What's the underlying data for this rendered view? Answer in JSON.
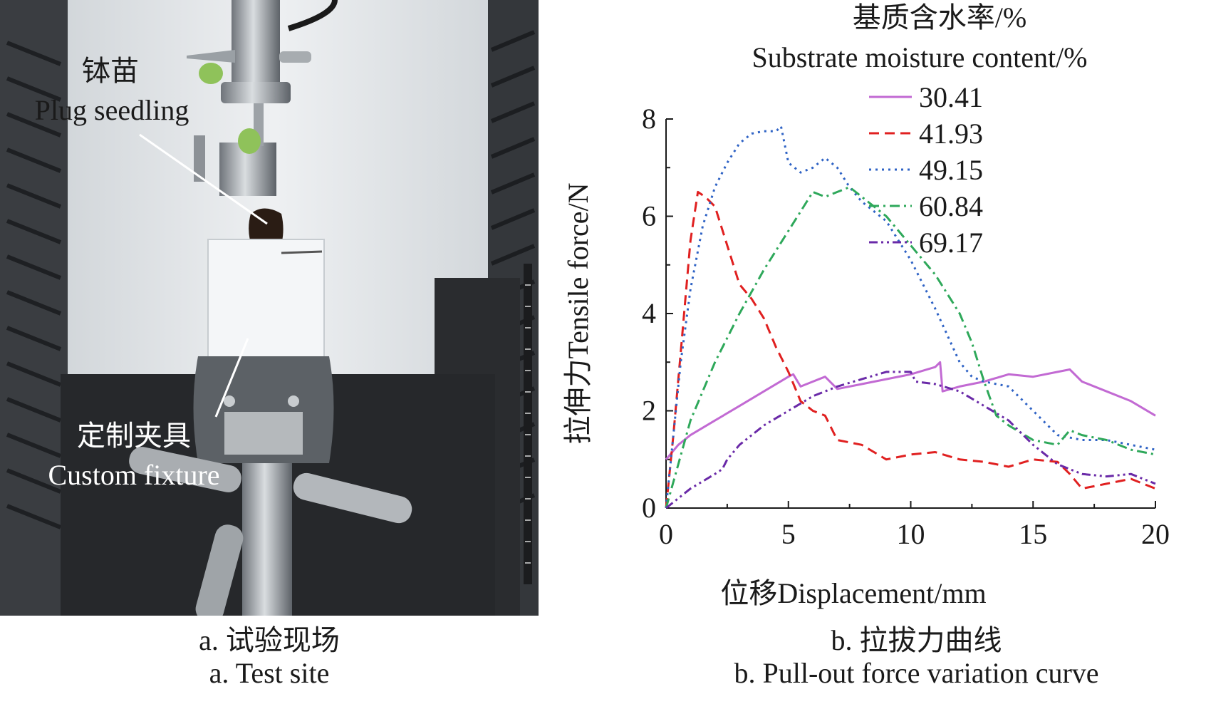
{
  "photo": {
    "label_plug_zh": "钵苗",
    "label_plug_en": "Plug seedling",
    "label_fixture_zh": "定制夹具",
    "label_fixture_en": "Custom fixture"
  },
  "captions": {
    "a_zh": "a. 试验现场",
    "a_en": "a. Test site",
    "b_zh": "b. 拉拔力曲线",
    "b_en": "b. Pull-out force variation curve"
  },
  "colors": {
    "s1": "#c26ad3",
    "s2": "#e02020",
    "s3": "#2f63c5",
    "s4": "#2ea85a",
    "s5": "#6a2aa8"
  },
  "chart_data": {
    "type": "line",
    "xlabel": "位移Displacement/mm",
    "ylabel": "拉伸力Tensile force/N",
    "xlim": [
      0,
      20
    ],
    "ylim": [
      0,
      8
    ],
    "xticks": [
      "0",
      "5",
      "10",
      "15",
      "20"
    ],
    "yticks": [
      "0",
      "2",
      "4",
      "6",
      "8"
    ],
    "grid": false,
    "legend_title_zh": "基质含水率/%",
    "legend_title_en": "Substrate moisture content/%",
    "legend_position": "top-right",
    "series": [
      {
        "name": "30.41",
        "style": "solid",
        "x": [
          0,
          0.5,
          1,
          2,
          3,
          4,
          5,
          5.2,
          5.5,
          6,
          6.5,
          7,
          8,
          9,
          10,
          11,
          11.2,
          11.3,
          12,
          13,
          14,
          15,
          16,
          16.5,
          17,
          18,
          19,
          20
        ],
        "y": [
          1.0,
          1.3,
          1.5,
          1.8,
          2.1,
          2.4,
          2.7,
          2.75,
          2.5,
          2.6,
          2.7,
          2.45,
          2.55,
          2.65,
          2.75,
          2.9,
          3.0,
          2.4,
          2.5,
          2.6,
          2.75,
          2.7,
          2.8,
          2.85,
          2.6,
          2.4,
          2.2,
          1.9
        ]
      },
      {
        "name": "41.93",
        "style": "dashed",
        "x": [
          0,
          0.3,
          0.6,
          1.0,
          1.3,
          1.6,
          2.0,
          2.5,
          3.0,
          3.5,
          4.0,
          4.5,
          5.0,
          5.5,
          6.0,
          6.5,
          7.0,
          8.0,
          9.0,
          10.0,
          11.0,
          12.0,
          13.0,
          14.0,
          15.0,
          16.0,
          16.5,
          17.0,
          18.0,
          19.0,
          20.0
        ],
        "y": [
          0,
          1.5,
          3.2,
          5.5,
          6.5,
          6.4,
          6.2,
          5.4,
          4.6,
          4.3,
          3.9,
          3.3,
          2.8,
          2.2,
          2.0,
          1.9,
          1.4,
          1.3,
          1.0,
          1.1,
          1.15,
          1.0,
          0.95,
          0.85,
          1.0,
          0.95,
          0.7,
          0.4,
          0.5,
          0.6,
          0.4
        ]
      },
      {
        "name": "49.15",
        "style": "dotted",
        "x": [
          0,
          0.3,
          0.6,
          1.0,
          1.5,
          2.0,
          2.5,
          3.0,
          3.5,
          4.0,
          4.5,
          4.7,
          5.0,
          5.5,
          6.0,
          6.5,
          7.0,
          7.5,
          8.0,
          9.0,
          10.0,
          11.0,
          12.0,
          12.5,
          13.0,
          14.0,
          15.0,
          16.0,
          17.0,
          18.0,
          19.0,
          20.0
        ],
        "y": [
          0,
          1.5,
          3.0,
          4.5,
          5.8,
          6.6,
          7.1,
          7.5,
          7.7,
          7.75,
          7.75,
          7.85,
          7.1,
          6.9,
          7.0,
          7.2,
          7.0,
          6.6,
          6.3,
          5.9,
          5.1,
          4.1,
          3.0,
          2.7,
          2.6,
          2.5,
          2.0,
          1.5,
          1.4,
          1.4,
          1.3,
          1.2
        ]
      },
      {
        "name": "60.84",
        "style": "dashdot",
        "x": [
          0,
          0.5,
          1,
          2,
          3,
          4,
          5,
          6,
          6.5,
          7,
          7.5,
          8,
          9,
          10,
          11,
          12,
          12.5,
          13,
          13.5,
          14,
          15,
          16,
          16.5,
          17,
          18,
          19,
          20
        ],
        "y": [
          0,
          0.9,
          1.8,
          3.0,
          4.0,
          4.9,
          5.7,
          6.5,
          6.4,
          6.5,
          6.6,
          6.4,
          6.0,
          5.4,
          4.8,
          4.0,
          3.4,
          2.6,
          1.9,
          1.7,
          1.4,
          1.3,
          1.6,
          1.5,
          1.4,
          1.2,
          1.1
        ]
      },
      {
        "name": "69.17",
        "style": "dashdotdot",
        "x": [
          0,
          0.5,
          1,
          1.5,
          2,
          2.3,
          2.5,
          3,
          4,
          5,
          6,
          7,
          8,
          9,
          10,
          10.2,
          11,
          12,
          13,
          14,
          15,
          16,
          17,
          18,
          19,
          20
        ],
        "y": [
          0,
          0.2,
          0.4,
          0.55,
          0.7,
          0.8,
          1.0,
          1.3,
          1.7,
          2.0,
          2.3,
          2.5,
          2.65,
          2.8,
          2.8,
          2.6,
          2.55,
          2.4,
          2.1,
          1.8,
          1.3,
          0.9,
          0.7,
          0.65,
          0.7,
          0.5
        ]
      }
    ]
  }
}
